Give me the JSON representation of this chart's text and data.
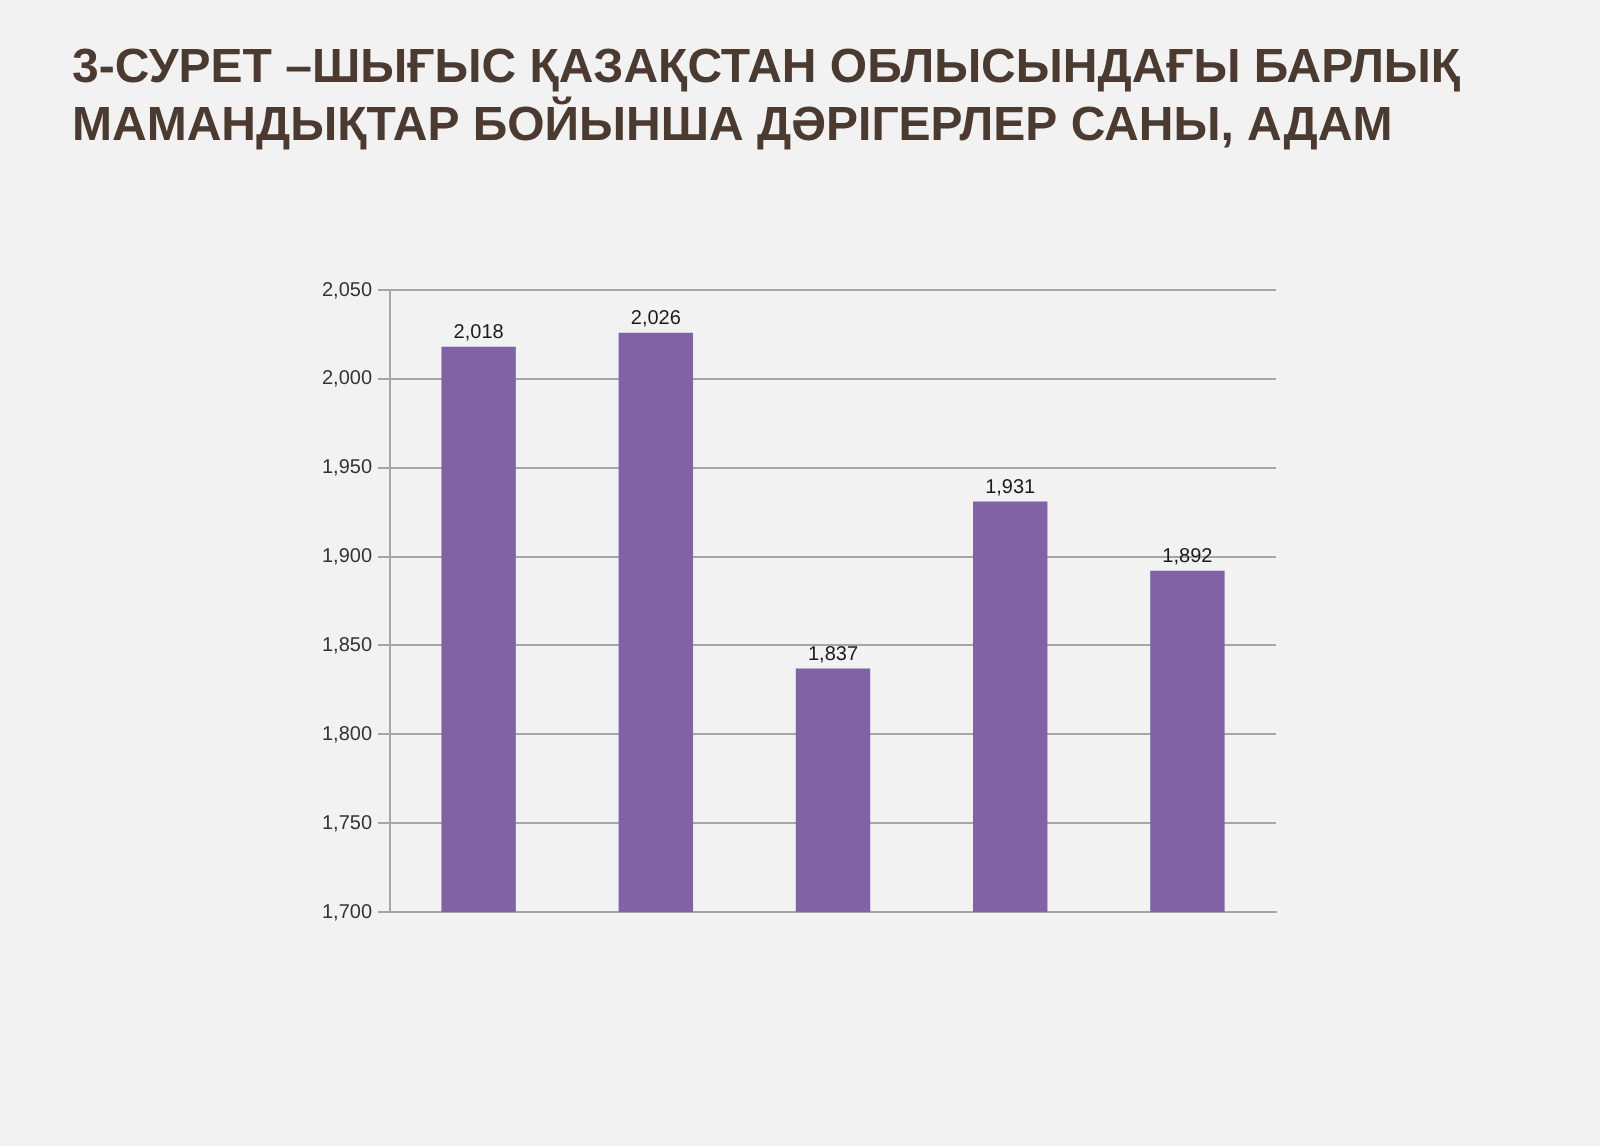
{
  "chart_data": {
    "type": "bar",
    "title": "3-СУРЕТ –ШЫҒЫС ҚАЗАҚСТАН ОБЛЫСЫНДАҒЫ БАРЛЫҚ МАМАНДЫҚТАР БОЙЫНША ДӘРІГЕРЛЕР САНЫ, АДАМ",
    "categories": [
      null,
      null,
      null,
      null,
      null
    ],
    "values": [
      2018,
      2026,
      1837,
      1931,
      1892
    ],
    "value_labels": [
      "2,018",
      "2,026",
      "1,837",
      "1,931",
      "1,892"
    ],
    "color": "#7f63a5",
    "ylim": [
      1700,
      2050
    ],
    "yticks": [
      {
        "value": 1700,
        "label": "1,700"
      },
      {
        "value": 1750,
        "label": "1,750"
      },
      {
        "value": 1800,
        "label": "1,800"
      },
      {
        "value": 1850,
        "label": "1,850"
      },
      {
        "value": 1900,
        "label": "1,900"
      },
      {
        "value": 1950,
        "label": "1,950"
      },
      {
        "value": 2000,
        "label": "2,000"
      },
      {
        "value": 2050,
        "label": "2,050"
      }
    ],
    "grid": "y",
    "tick_labels": "y"
  }
}
